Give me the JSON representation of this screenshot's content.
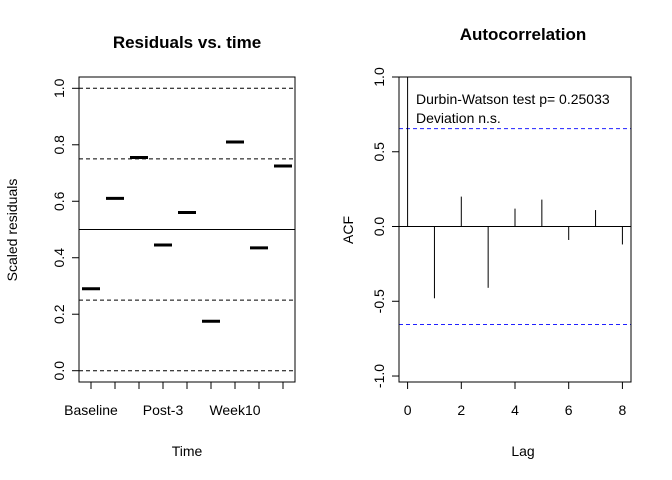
{
  "chart_data": [
    {
      "type": "scatter",
      "title": "Residuals vs. time",
      "xlabel": "Time",
      "ylabel": "Scaled residuals",
      "xlim": [
        0.5,
        9.5
      ],
      "ylim": [
        -0.04,
        1.04
      ],
      "x_ticks": [
        1,
        2,
        3,
        4,
        5,
        6,
        7,
        8,
        9
      ],
      "x_tick_labels": [
        {
          "x": 1,
          "label": "Baseline"
        },
        {
          "x": 4,
          "label": "Post-3"
        },
        {
          "x": 7,
          "label": "Week10"
        }
      ],
      "y_ticks": [
        0.0,
        0.2,
        0.4,
        0.6,
        0.8,
        1.0
      ],
      "y_tick_labels": [
        "0.0",
        "0.2",
        "0.4",
        "0.6",
        "0.8",
        "1.0"
      ],
      "points": [
        {
          "x": 1,
          "y": 0.29
        },
        {
          "x": 2,
          "y": 0.61
        },
        {
          "x": 3,
          "y": 0.755
        },
        {
          "x": 4,
          "y": 0.445
        },
        {
          "x": 5,
          "y": 0.56
        },
        {
          "x": 6,
          "y": 0.175
        },
        {
          "x": 7,
          "y": 0.81
        },
        {
          "x": 8,
          "y": 0.435
        },
        {
          "x": 9,
          "y": 0.725
        }
      ],
      "reference_lines": {
        "solid": [
          0.5
        ],
        "dashed": [
          0.0,
          0.25,
          0.75,
          1.0
        ]
      },
      "grid": false
    },
    {
      "type": "bar",
      "title": "Autocorrelation",
      "xlabel": "Lag",
      "ylabel": "ACF",
      "xlim": [
        -0.32,
        8.32
      ],
      "ylim": [
        -1.04,
        1.0
      ],
      "x_ticks": [
        0,
        2,
        4,
        6,
        8
      ],
      "x_tick_labels": [
        "0",
        "2",
        "4",
        "6",
        "8"
      ],
      "y_ticks": [
        -1.0,
        -0.5,
        0.0,
        0.5,
        1.0
      ],
      "y_tick_labels": [
        "-1.0",
        "-0.5",
        "0.0",
        "0.5",
        "1.0"
      ],
      "lags": [
        0,
        1,
        2,
        3,
        4,
        5,
        6,
        7,
        8
      ],
      "acf": [
        1.0,
        -0.48,
        0.2,
        -0.41,
        0.12,
        0.18,
        -0.09,
        0.11,
        -0.12
      ],
      "confidence_bounds": [
        -0.655,
        0.655
      ],
      "confidence_color": "#2020ff",
      "annotations": [
        "Durbin-Watson test  p= 0.25033",
        "Deviation  n.s."
      ],
      "grid": false
    }
  ]
}
